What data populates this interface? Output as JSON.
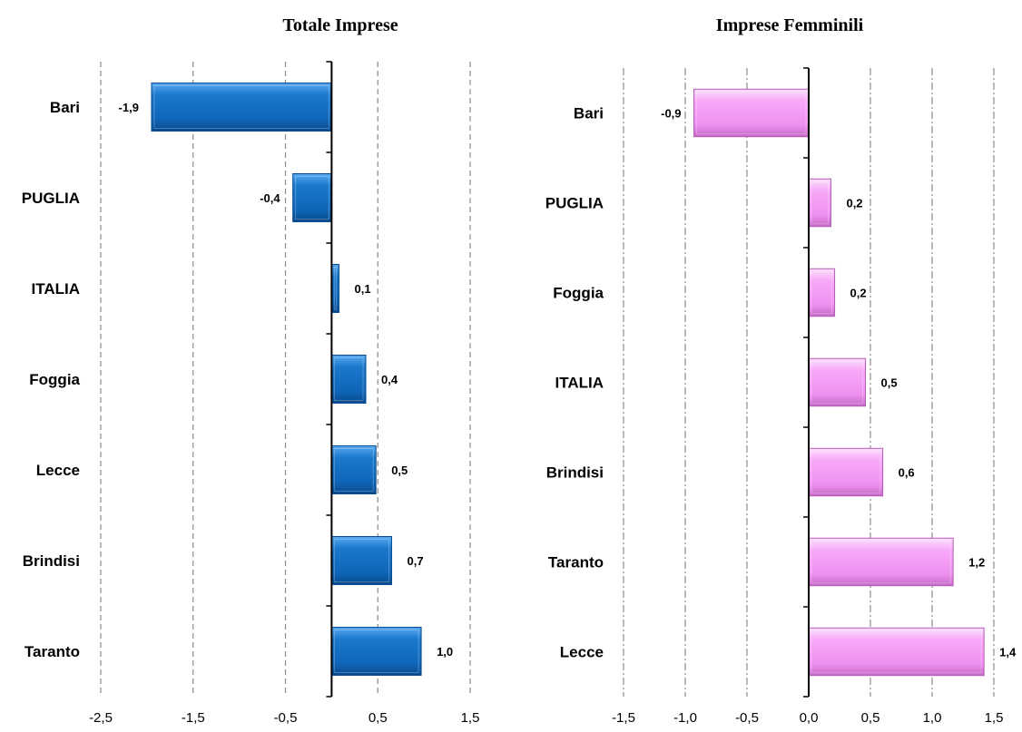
{
  "chart_data": [
    {
      "type": "bar",
      "orientation": "horizontal",
      "title": "Totale Imprese",
      "categories": [
        "Bari",
        "PUGLIA",
        "ITALIA",
        "Foggia",
        "Lecce",
        "Brindisi",
        "Taranto"
      ],
      "values": [
        -1.95,
        -0.42,
        0.08,
        0.37,
        0.48,
        0.65,
        0.97
      ],
      "data_labels": [
        "-1,9",
        "-0,4",
        "0,1",
        "0,4",
        "0,5",
        "0,7",
        "1,0"
      ],
      "xlim": [
        -2.5,
        1.5
      ],
      "xticks": [
        "-2,5",
        "-1,5",
        "-0,5",
        "0,5",
        "1,5"
      ],
      "xtick_values": [
        -2.5,
        -1.5,
        -0.5,
        0.5,
        1.5
      ],
      "grid": "vertical dashed",
      "color": "#1473c8",
      "xlabel": "",
      "ylabel": ""
    },
    {
      "type": "bar",
      "orientation": "horizontal",
      "title": "Imprese Femminili",
      "categories": [
        "Bari",
        "PUGLIA",
        "Foggia",
        "ITALIA",
        "Brindisi",
        "Taranto",
        "Lecce"
      ],
      "values": [
        -0.93,
        0.18,
        0.21,
        0.46,
        0.6,
        1.17,
        1.42
      ],
      "data_labels": [
        "-0,9",
        "0,2",
        "0,2",
        "0,5",
        "0,6",
        "1,2",
        "1,4"
      ],
      "xlim": [
        -1.5,
        1.5
      ],
      "xticks": [
        "-1,5",
        "-1,0",
        "-0,5",
        "0,0",
        "0,5",
        "1,0",
        "1,5"
      ],
      "xtick_values": [
        -1.5,
        -1.0,
        -0.5,
        0.0,
        0.5,
        1.0,
        1.5
      ],
      "grid": "vertical dash-dot",
      "color": "#f49ef5",
      "xlabel": "",
      "ylabel": ""
    }
  ]
}
